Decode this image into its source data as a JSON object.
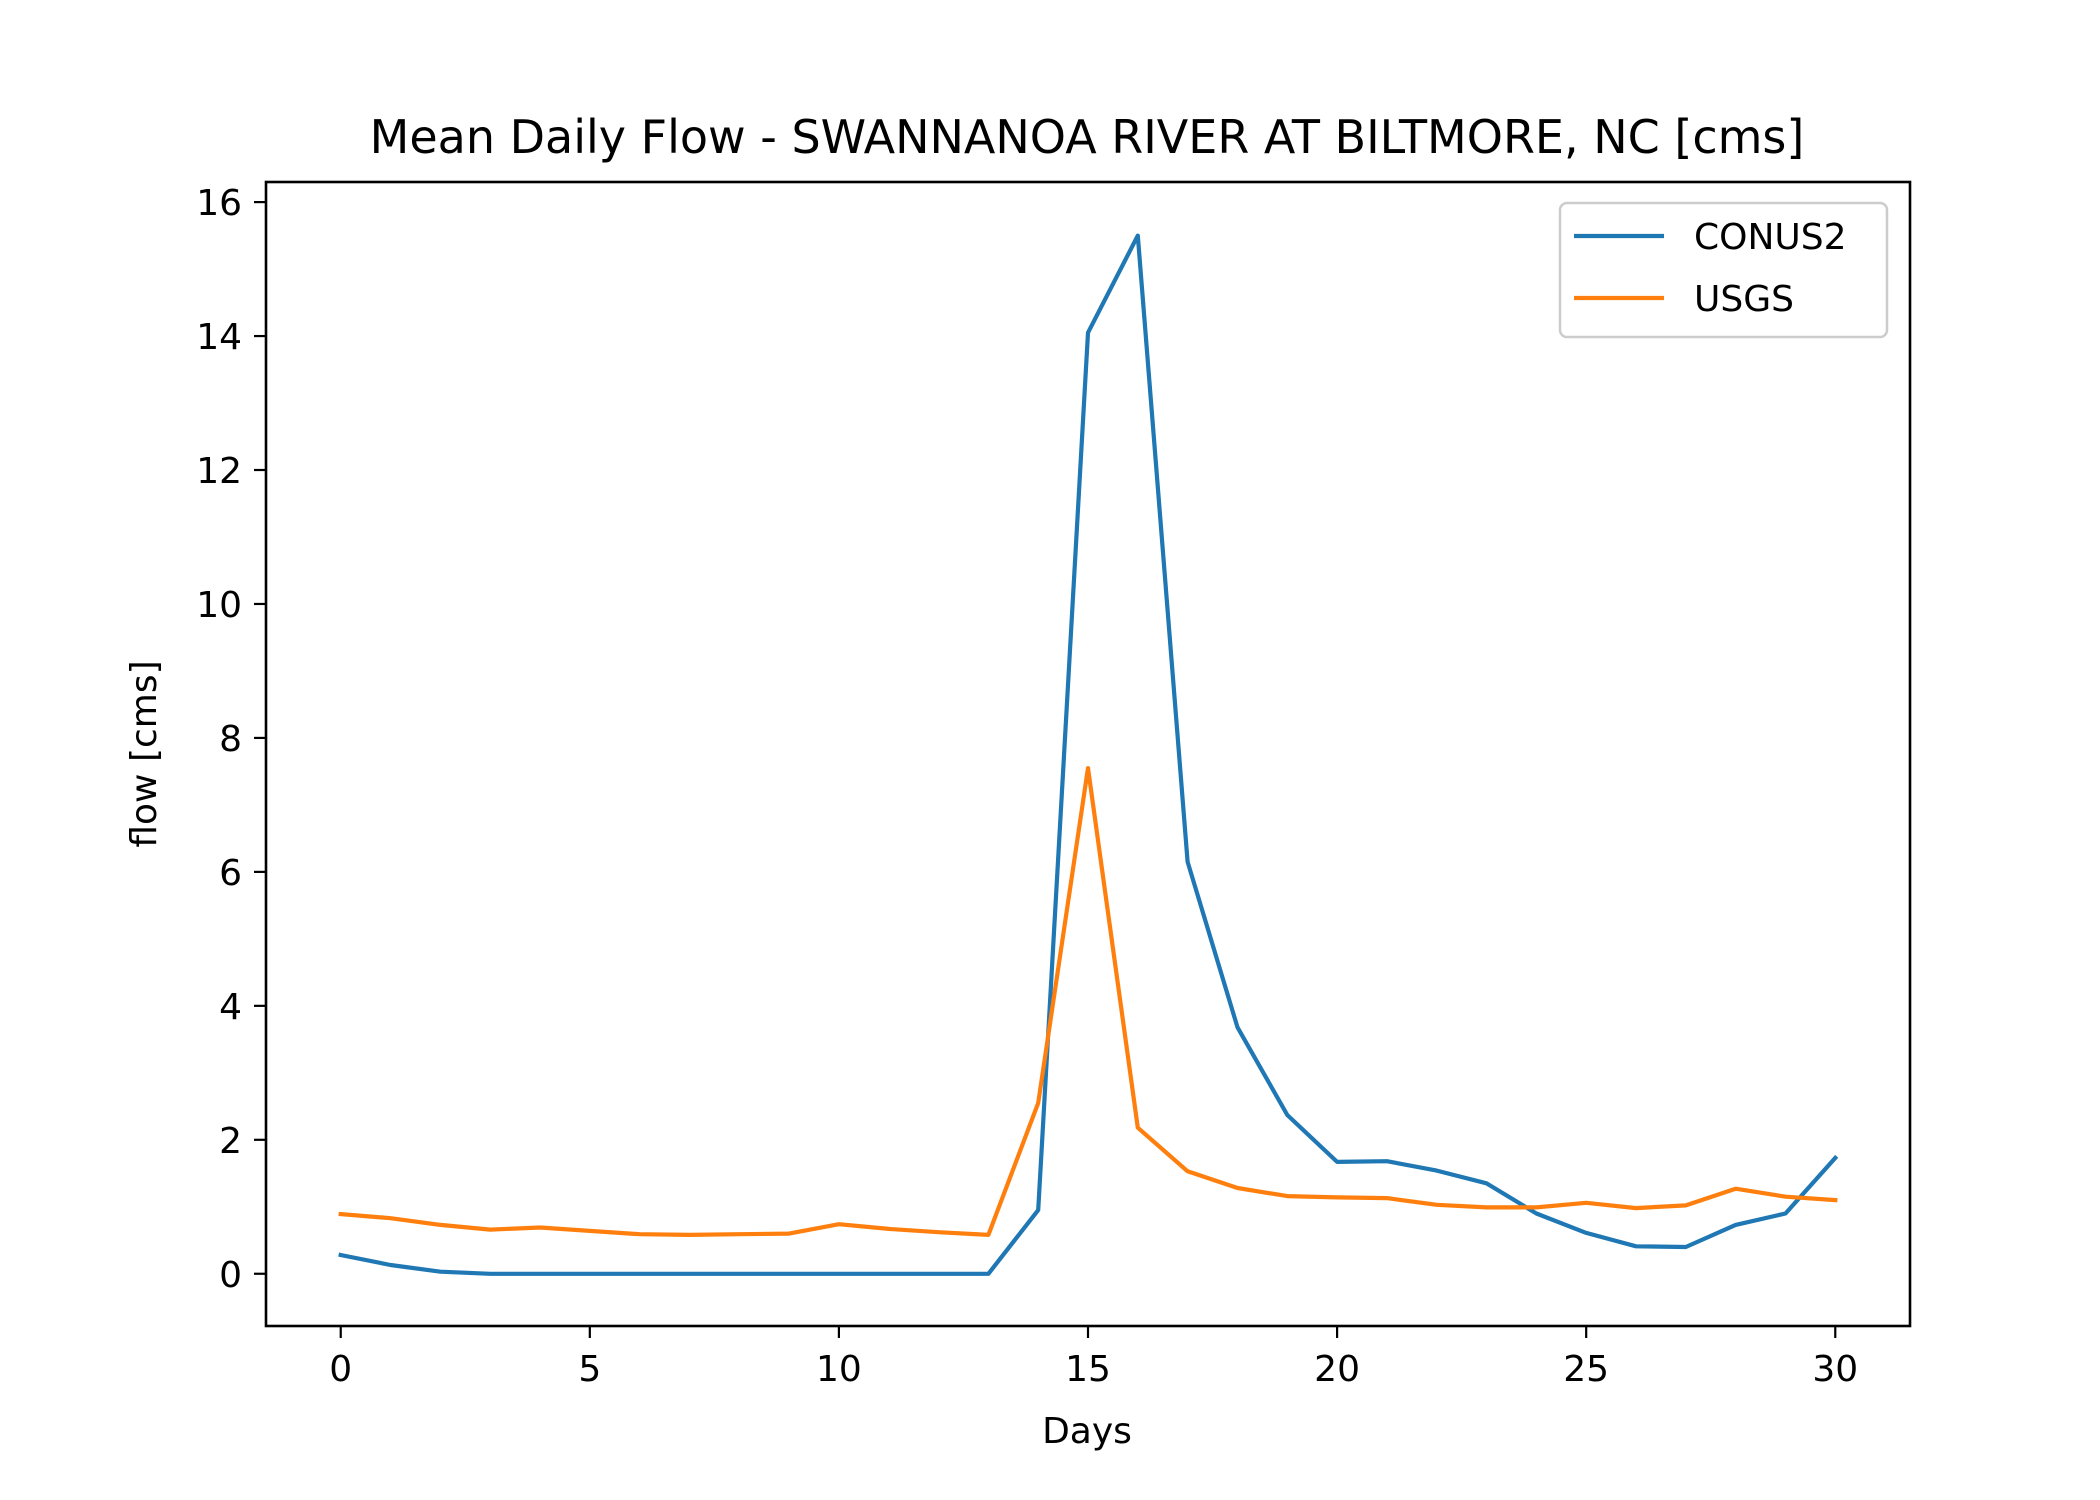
{
  "chart_data": {
    "type": "line",
    "title": "Mean Daily Flow - SWANNANOA RIVER AT BILTMORE, NC [cms]",
    "xlabel": "Days",
    "ylabel": "flow [cms]",
    "xlim": [
      -1.5,
      31.5
    ],
    "ylim": [
      -0.78,
      16.3
    ],
    "xticks": [
      0,
      5,
      10,
      15,
      20,
      25,
      30
    ],
    "yticks": [
      0,
      2,
      4,
      6,
      8,
      10,
      12,
      14,
      16
    ],
    "grid": false,
    "legend_position": "top-right",
    "x": [
      0,
      1,
      2,
      3,
      4,
      5,
      6,
      7,
      8,
      9,
      10,
      11,
      12,
      13,
      14,
      15,
      16,
      17,
      18,
      19,
      20,
      21,
      22,
      23,
      24,
      25,
      26,
      27,
      28,
      29,
      30
    ],
    "series": [
      {
        "name": "CONUS2",
        "color": "#1f77b4",
        "values": [
          0.28,
          0.13,
          0.03,
          0.0,
          0.0,
          0.0,
          0.0,
          0.0,
          0.0,
          0.0,
          0.0,
          0.0,
          0.0,
          0.0,
          0.95,
          14.05,
          15.5,
          6.15,
          3.68,
          2.37,
          1.67,
          1.68,
          1.54,
          1.35,
          0.9,
          0.61,
          0.41,
          0.4,
          0.73,
          0.9,
          1.73
        ]
      },
      {
        "name": "USGS",
        "color": "#ff7f0e",
        "values": [
          0.89,
          0.83,
          0.73,
          0.66,
          0.69,
          0.64,
          0.59,
          0.58,
          0.59,
          0.6,
          0.74,
          0.67,
          0.62,
          0.58,
          2.55,
          7.55,
          2.18,
          1.53,
          1.28,
          1.16,
          1.14,
          1.13,
          1.03,
          0.99,
          0.99,
          1.06,
          0.98,
          1.02,
          1.27,
          1.15,
          1.1
        ]
      }
    ]
  }
}
